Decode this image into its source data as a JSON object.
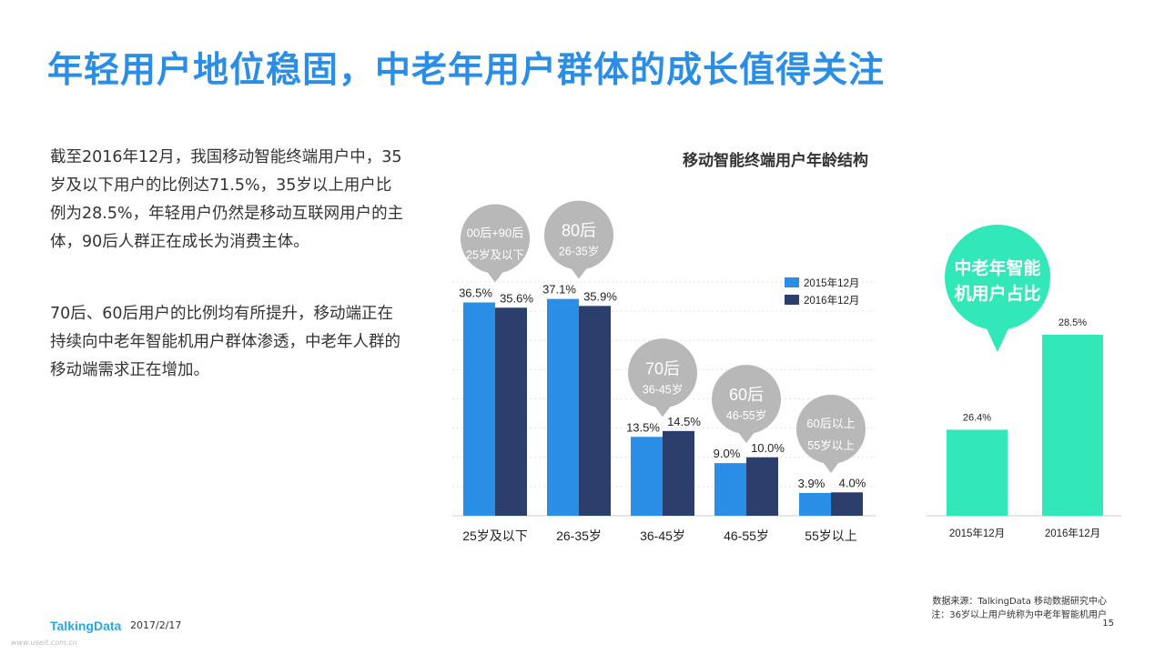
{
  "slide": {
    "title": "年轻用户地位稳固，中老年用户群体的成长值得关注",
    "paragraph1": "截至2016年12月，我国移动智能终端用户中，35岁及以下用户的比例达71.5%，35岁以上用户比例为28.5%，年轻用户仍然是移动互联网用户的主体，90后人群正在成长为消费主体。",
    "paragraph2": "70后、60后用户的比例均有所提升，移动端正在持续向中老年智能机用户群体渗透，中老年人群的移动端需求正在增加。",
    "logo": "TalkingData",
    "date": "2017/2/17",
    "source_line1": "数据来源：TalkingData 移动数据研究中心",
    "source_line2": "注：36岁以上用户统称为中老年智能机用户",
    "page_number": "15",
    "watermark": "www.useit.com.cn"
  },
  "chart_data": [
    {
      "type": "bar",
      "title": "移动智能终端用户年龄结构",
      "categories": [
        "25岁及以下",
        "26-35岁",
        "36-45岁",
        "46-55岁",
        "55岁以上"
      ],
      "series": [
        {
          "name": "2015年12月",
          "values": [
            36.5,
            37.1,
            13.5,
            9.0,
            3.9
          ],
          "labels": [
            "36.5%",
            "37.1%",
            "13.5%",
            "9.0%",
            "3.9%"
          ],
          "color": "#2a8de6"
        },
        {
          "name": "2016年12月",
          "values": [
            35.6,
            35.9,
            14.5,
            10.0,
            4.0
          ],
          "labels": [
            "35.6%",
            "35.9%",
            "14.5%",
            "10.0%",
            "4.0%"
          ],
          "color": "#2c3e6b"
        }
      ],
      "ylim": [
        0,
        40
      ],
      "grid": true,
      "legend": "top-right",
      "annotations": [
        {
          "line1": "00后+90后",
          "line2": "25岁及以下"
        },
        {
          "line1": "80后",
          "line2": "26-35岁"
        },
        {
          "line1": "70后",
          "line2": "36-45岁"
        },
        {
          "line1": "60后",
          "line2": "46-55岁"
        },
        {
          "line1": "60后以上",
          "line2": "55岁以上"
        }
      ]
    },
    {
      "type": "bar",
      "title": "中老年智能机用户占比",
      "categories": [
        "2015年12月",
        "2016年12月"
      ],
      "values": [
        26.4,
        28.5
      ],
      "labels": [
        "26.4%",
        "28.5%"
      ],
      "color": "#33e8b8",
      "ylim": [
        24.5,
        29.3
      ]
    }
  ]
}
